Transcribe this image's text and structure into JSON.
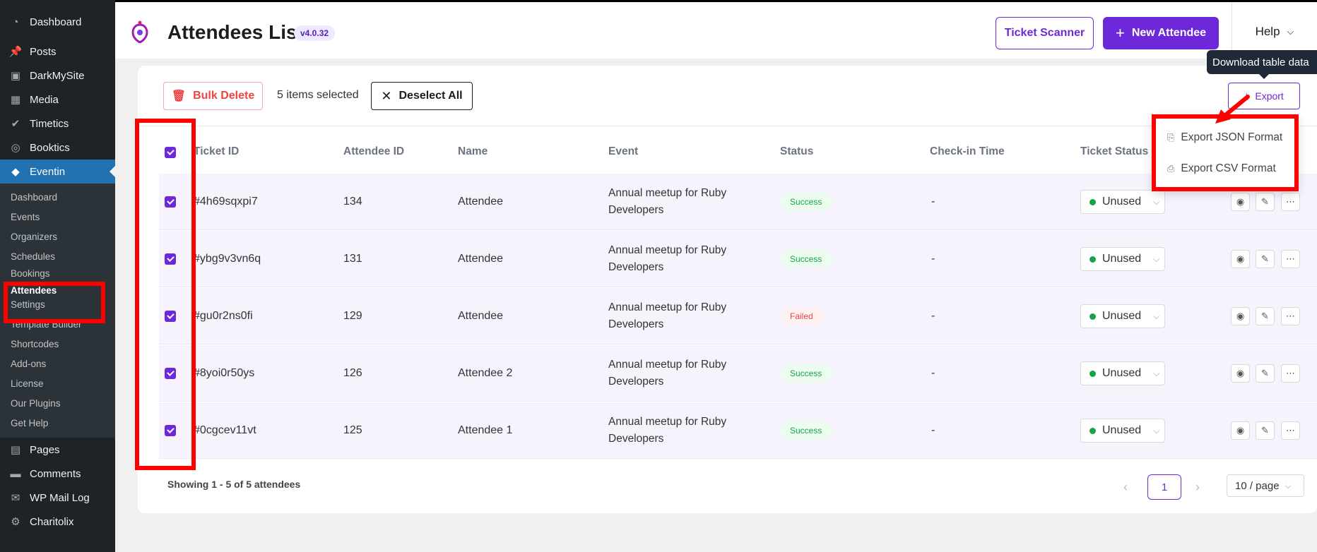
{
  "sidebar": {
    "items": [
      {
        "label": "Dashboard",
        "icon": "dashboard-icon"
      },
      {
        "label": "Posts",
        "icon": "pin-icon"
      },
      {
        "label": "DarkMySite",
        "icon": "darkmysite-icon"
      },
      {
        "label": "Media",
        "icon": "media-icon"
      },
      {
        "label": "Timetics",
        "icon": "timetics-icon"
      },
      {
        "label": "Booktics",
        "icon": "booktics-icon"
      },
      {
        "label": "Eventin",
        "icon": "eventin-icon"
      }
    ],
    "submenu": [
      "Dashboard",
      "Events",
      "Organizers",
      "Schedules",
      "Bookings",
      "Attendees",
      "Settings",
      "Template Builder",
      "Shortcodes",
      "Add-ons",
      "License",
      "Our Plugins",
      "Get Help"
    ],
    "bottom_items": [
      {
        "label": "Pages",
        "icon": "pages-icon"
      },
      {
        "label": "Comments",
        "icon": "comments-icon"
      },
      {
        "label": "WP Mail Log",
        "icon": "mail-icon"
      },
      {
        "label": "Charitolix",
        "icon": "charitolix-icon"
      }
    ]
  },
  "header": {
    "title": "Attendees List",
    "version": "v4.0.32",
    "ticket_scanner": "Ticket Scanner",
    "new_attendee": "New Attendee",
    "help": "Help"
  },
  "toolbar": {
    "bulk_delete": "Bulk Delete",
    "selected_text": "5 items selected",
    "deselect_all": "Deselect All",
    "export": "Export",
    "tooltip": "Download table data"
  },
  "export_menu": {
    "json": "Export JSON Format",
    "csv": "Export CSV Format"
  },
  "table": {
    "columns": [
      "Ticket ID",
      "Attendee ID",
      "Name",
      "Event",
      "Status",
      "Check-in Time",
      "Ticket Status"
    ],
    "rows": [
      {
        "ticket_id": "#4h69sqxpi7",
        "attendee_id": "134",
        "name": "Attendee",
        "event_l1": "Annual meetup for Ruby",
        "event_l2": "Developers",
        "status": "Success",
        "checkin": "-",
        "ticket_status": "Unused"
      },
      {
        "ticket_id": "#ybg9v3vn6q",
        "attendee_id": "131",
        "name": "Attendee",
        "event_l1": "Annual meetup for Ruby",
        "event_l2": "Developers",
        "status": "Success",
        "checkin": "-",
        "ticket_status": "Unused"
      },
      {
        "ticket_id": "#gu0r2ns0fi",
        "attendee_id": "129",
        "name": "Attendee",
        "event_l1": "Annual meetup for Ruby",
        "event_l2": "Developers",
        "status": "Failed",
        "checkin": "-",
        "ticket_status": "Unused"
      },
      {
        "ticket_id": "#8yoi0r50ys",
        "attendee_id": "126",
        "name": "Attendee 2",
        "event_l1": "Annual meetup for Ruby",
        "event_l2": "Developers",
        "status": "Success",
        "checkin": "-",
        "ticket_status": "Unused"
      },
      {
        "ticket_id": "#0cgcev11vt",
        "attendee_id": "125",
        "name": "Attendee 1",
        "event_l1": "Annual meetup for Ruby",
        "event_l2": "Developers",
        "status": "Success",
        "checkin": "-",
        "ticket_status": "Unused"
      }
    ]
  },
  "footer": {
    "showing": "Showing 1 - 5 of 5 attendees",
    "page": "1",
    "page_size": "10 / page"
  },
  "colors": {
    "accent": "#6d28d9",
    "wp_active": "#2271b1",
    "annotation": "#ff0000",
    "success": "#16a34a",
    "failed": "#ef4444"
  }
}
